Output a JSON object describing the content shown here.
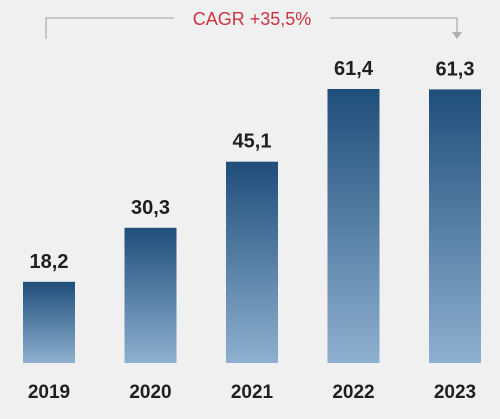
{
  "colors": {
    "background": "#f0f0f0",
    "bar_top": "#1f4e7a",
    "bar_bottom": "#8fb0cf",
    "cagr_text": "#cc3340",
    "bracket": "#b0b0b0",
    "label_text": "#1f1f1f"
  },
  "annotation": {
    "cagr_label": "CAGR +35,5%"
  },
  "chart_data": {
    "type": "bar",
    "categories": [
      "2019",
      "2020",
      "2021",
      "2022",
      "2023"
    ],
    "values": [
      18.2,
      30.3,
      45.1,
      61.4,
      61.3
    ],
    "value_labels": [
      "18,2",
      "30,3",
      "45,1",
      "61,4",
      "61,3"
    ],
    "title": "",
    "xlabel": "",
    "ylabel": "",
    "ylim": [
      0,
      61.4
    ],
    "grid": false,
    "legend": "none",
    "annotations": [
      {
        "text": "CAGR +35,5%",
        "from": "2019",
        "to": "2023",
        "style": "bracket-arrow"
      }
    ]
  }
}
